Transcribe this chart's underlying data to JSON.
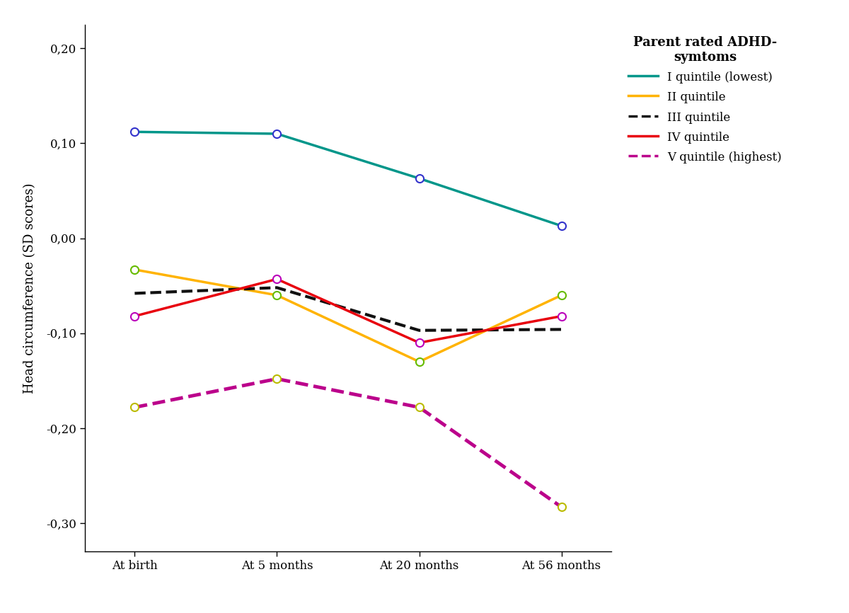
{
  "title": "",
  "xlabel": "",
  "ylabel": "Head circumference (SD scores)",
  "legend_title": "Parent rated ADHD-\nsymtoms",
  "x_labels": [
    "At birth",
    "At 5 months",
    "At 20 months",
    "At 56 months"
  ],
  "series": [
    {
      "label": "I quintile (lowest)",
      "line_color": "#00968A",
      "linestyle": "-",
      "linewidth": 2.5,
      "marker": "o",
      "markerfacecolor": "white",
      "markeredgecolor": "#3333CC",
      "markersize": 8,
      "values": [
        0.112,
        0.11,
        0.063,
        0.013
      ]
    },
    {
      "label": "II quintile",
      "line_color": "#FFB300",
      "linestyle": "-",
      "linewidth": 2.5,
      "marker": "o",
      "markerfacecolor": "white",
      "markeredgecolor": "#66BB00",
      "markersize": 8,
      "values": [
        -0.033,
        -0.06,
        -0.13,
        -0.06
      ]
    },
    {
      "label": "III quintile",
      "line_color": "#111111",
      "linestyle": "--",
      "linewidth": 3.0,
      "marker": null,
      "markerfacecolor": null,
      "markeredgecolor": null,
      "markersize": 0,
      "values": [
        -0.058,
        -0.052,
        -0.097,
        -0.096
      ]
    },
    {
      "label": "IV quintile",
      "line_color": "#E8000D",
      "linestyle": "-",
      "linewidth": 2.5,
      "marker": "o",
      "markerfacecolor": "white",
      "markeredgecolor": "#BB00BB",
      "markersize": 8,
      "values": [
        -0.082,
        -0.043,
        -0.11,
        -0.082
      ]
    },
    {
      "label": "V quintile (highest)",
      "line_color": "#BB008B",
      "linestyle": "--",
      "linewidth": 3.5,
      "marker": "o",
      "markerfacecolor": "white",
      "markeredgecolor": "#BBBB00",
      "markersize": 8,
      "values": [
        -0.178,
        -0.148,
        -0.178,
        -0.283
      ]
    }
  ],
  "ylim": [
    -0.33,
    0.225
  ],
  "yticks": [
    -0.3,
    -0.2,
    -0.1,
    0.0,
    0.1,
    0.2
  ],
  "ytick_labels": [
    "-0,30",
    "-0,20",
    "-0,10",
    "0,00",
    "0,10",
    "0,20"
  ],
  "background_color": "#ffffff",
  "plot_bg_color": "#ffffff",
  "figsize": [
    12.0,
    8.66
  ],
  "dpi": 100
}
